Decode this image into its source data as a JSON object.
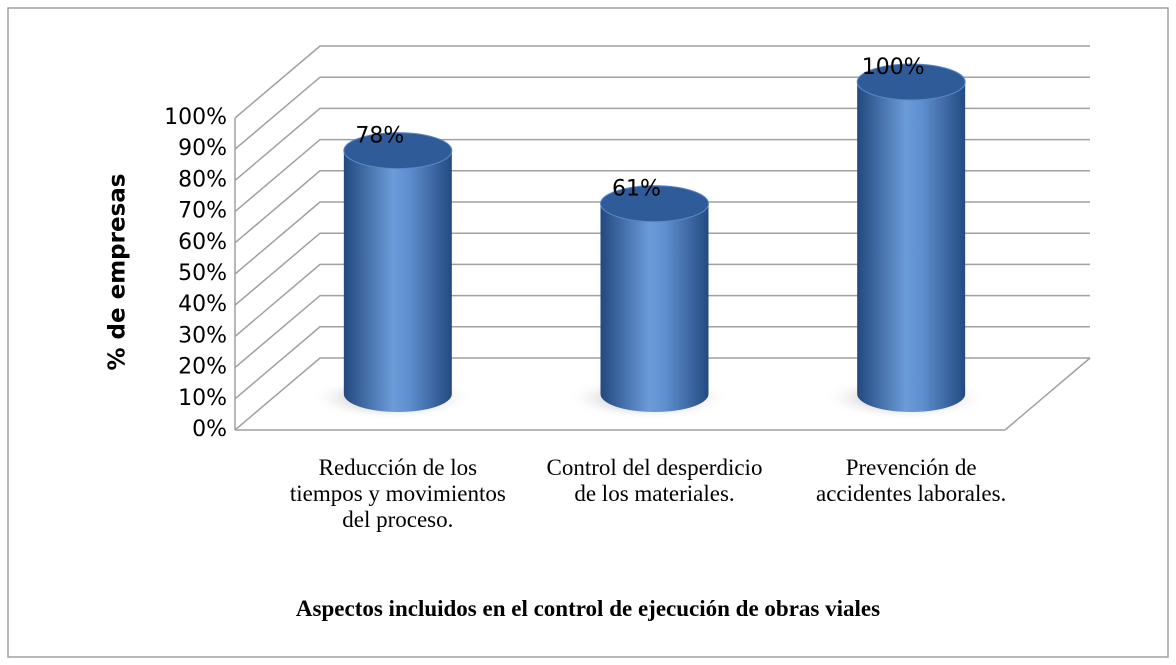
{
  "chart_data": {
    "type": "bar3d",
    "categories": [
      "Reducción de los tiempos y movimientos del proceso.",
      "Control del desperdicio de los materiales.",
      "Prevención de accidentes laborales."
    ],
    "values": [
      78,
      61,
      100
    ],
    "value_labels": [
      "78%",
      "61%",
      "100%"
    ],
    "color": "#4a7cc0",
    "y_label": "% de empresas",
    "x_label": "Aspectos incluidos en el control de ejecución de obras viales",
    "ylim": [
      0,
      100
    ],
    "yticks": [
      {
        "value": 0,
        "label": "0%"
      },
      {
        "value": 10,
        "label": "10%"
      },
      {
        "value": 20,
        "label": "20%"
      },
      {
        "value": 30,
        "label": "30%"
      },
      {
        "value": 40,
        "label": "40%"
      },
      {
        "value": 50,
        "label": "50%"
      },
      {
        "value": 60,
        "label": "60%"
      },
      {
        "value": 70,
        "label": "70%"
      },
      {
        "value": 80,
        "label": "80%"
      },
      {
        "value": 90,
        "label": "90%"
      },
      {
        "value": 100,
        "label": "100%"
      }
    ],
    "grid": true
  }
}
